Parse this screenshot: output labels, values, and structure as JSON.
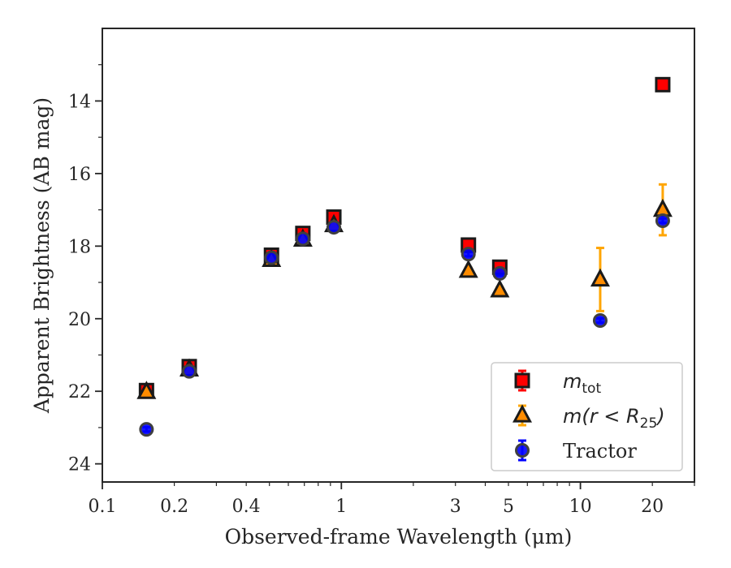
{
  "chart_data": {
    "type": "scatter",
    "title": "",
    "xlabel": "Observed-frame Wavelength (μm)",
    "ylabel": "Apparent Brightness (AB mag)",
    "xscale": "log",
    "xlim": [
      0.1,
      30
    ],
    "ylim": [
      24.5,
      12
    ],
    "y_inverted": true,
    "xticks": [
      0.1,
      0.2,
      0.4,
      1,
      3,
      5,
      10,
      20
    ],
    "xtick_labels": [
      "0.1",
      "0.2",
      "0.4",
      "1",
      "3",
      "5",
      "10",
      "20"
    ],
    "yticks": [
      14,
      16,
      18,
      20,
      22,
      24
    ],
    "ytick_labels": [
      "14",
      "16",
      "18",
      "20",
      "22",
      "24"
    ],
    "legend_position": "lower-right",
    "series": [
      {
        "name": "m_tot",
        "legend_main": "m",
        "legend_sub": "tot",
        "marker": "square",
        "face_color": "#ff0000",
        "edge_color": "#1a1a1a",
        "err_color": "#ff0000",
        "points": [
          {
            "x": 0.153,
            "y": 21.98,
            "err": 0.12
          },
          {
            "x": 0.231,
            "y": 21.32,
            "err": 0.1
          },
          {
            "x": 0.51,
            "y": 18.25,
            "err": 0.08
          },
          {
            "x": 0.69,
            "y": 17.65,
            "err": 0.08
          },
          {
            "x": 0.93,
            "y": 17.2,
            "err": 0.08
          },
          {
            "x": 3.4,
            "y": 17.97,
            "err": 0.08
          },
          {
            "x": 4.6,
            "y": 18.58,
            "err": 0.08
          },
          {
            "x": 22.1,
            "y": 13.55,
            "err": 0.06
          }
        ]
      },
      {
        "name": "m(r < R25)",
        "legend_main": "m(r < R",
        "legend_sub": "25",
        "legend_tail": ")",
        "marker": "triangle",
        "face_color": "#ff8c00",
        "edge_color": "#1a1a1a",
        "err_color": "#ffa500",
        "points": [
          {
            "x": 0.153,
            "y": 22.02,
            "err": 0.1
          },
          {
            "x": 0.231,
            "y": 21.4,
            "err": 0.1
          },
          {
            "x": 0.51,
            "y": 18.38,
            "err": 0.08
          },
          {
            "x": 0.69,
            "y": 17.82,
            "err": 0.08
          },
          {
            "x": 0.93,
            "y": 17.42,
            "err": 0.08
          },
          {
            "x": 3.4,
            "y": 18.68,
            "err": 0.08
          },
          {
            "x": 4.6,
            "y": 19.22,
            "err": 0.08
          },
          {
            "x": 12.1,
            "y": 18.92,
            "err": 0.87
          },
          {
            "x": 22.1,
            "y": 17.0,
            "err": 0.7
          }
        ]
      },
      {
        "name": "Tractor",
        "legend_main": "Tractor",
        "marker": "circle",
        "face_color": "#0000ff",
        "edge_color": "#404040",
        "err_color": "#0000ff",
        "points": [
          {
            "x": 0.153,
            "y": 23.05,
            "err": 0.06
          },
          {
            "x": 0.231,
            "y": 21.45,
            "err": 0.06
          },
          {
            "x": 0.51,
            "y": 18.32,
            "err": 0.06
          },
          {
            "x": 0.69,
            "y": 17.8,
            "err": 0.06
          },
          {
            "x": 0.93,
            "y": 17.48,
            "err": 0.06
          },
          {
            "x": 3.4,
            "y": 18.22,
            "err": 0.06
          },
          {
            "x": 4.6,
            "y": 18.75,
            "err": 0.06
          },
          {
            "x": 12.1,
            "y": 20.05,
            "err": 0.06
          },
          {
            "x": 22.1,
            "y": 17.3,
            "err": 0.06
          }
        ]
      }
    ]
  }
}
